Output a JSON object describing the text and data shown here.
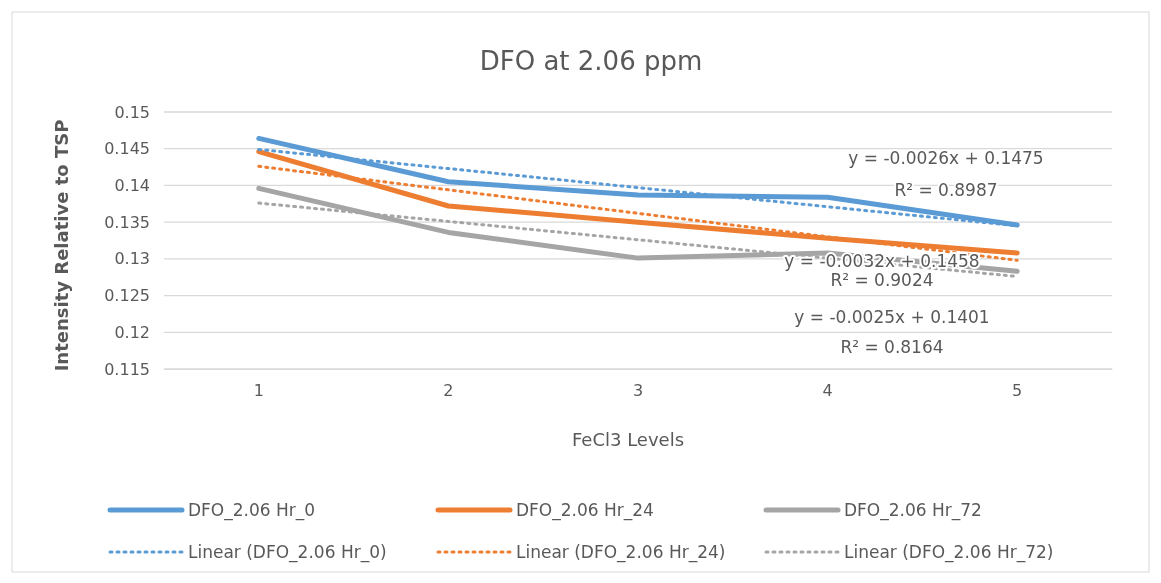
{
  "chart_data": {
    "type": "line",
    "title": "DFO at 2.06 ppm",
    "xlabel": "FeCl3 Levels",
    "ylabel": "Intensity Relative to TSP",
    "categories": [
      "1",
      "2",
      "3",
      "4",
      "5"
    ],
    "series": [
      {
        "name": "DFO_2.06 Hr_0",
        "color": "#5b9bd5",
        "line_style": "solid",
        "values": [
          0.1464,
          0.1405,
          0.1387,
          0.1384,
          0.1346
        ]
      },
      {
        "name": "DFO_2.06 Hr_24",
        "color": "#ed7d31",
        "line_style": "solid",
        "values": [
          0.1446,
          0.1372,
          0.135,
          0.1328,
          0.1308
        ]
      },
      {
        "name": "DFO_2.06 Hr_72",
        "color": "#a5a5a5",
        "line_style": "solid",
        "values": [
          0.1396,
          0.1336,
          0.1301,
          0.1308,
          0.1283
        ]
      },
      {
        "name": "Linear (DFO_2.06 Hr_0)",
        "color": "#5b9bd5",
        "line_style": "dotted",
        "values": [
          0.1449,
          0.1423,
          0.1397,
          0.1371,
          0.1345
        ]
      },
      {
        "name": "Linear (DFO_2.06 Hr_24)",
        "color": "#ed7d31",
        "line_style": "dotted",
        "values": [
          0.1426,
          0.1394,
          0.1362,
          0.133,
          0.1298
        ]
      },
      {
        "name": "Linear (DFO_2.06 Hr_72)",
        "color": "#a5a5a5",
        "line_style": "dotted",
        "values": [
          0.1376,
          0.1351,
          0.1326,
          0.1301,
          0.1276
        ]
      }
    ],
    "ylim": [
      0.115,
      0.15
    ],
    "yticks": [
      0.115,
      0.12,
      0.125,
      0.13,
      0.135,
      0.14,
      0.145,
      0.15
    ],
    "grid": "y",
    "legend": "bottom",
    "marker": "none",
    "annotations": [
      "y = -0.0026x + 0.1475",
      "R² = 0.8987",
      "y = -0.0032x + 0.1458",
      "R² = 0.9024",
      "y = -0.0025x + 0.1401",
      "R² = 0.8164"
    ]
  }
}
